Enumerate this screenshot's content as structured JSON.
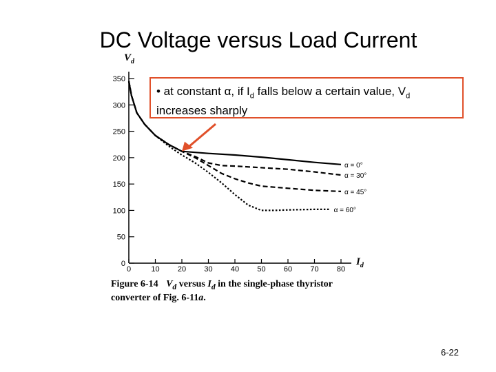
{
  "slide": {
    "title": "DC Voltage versus Load Current",
    "page_number": "6-22"
  },
  "callout": {
    "text_prefix": "• at constant α, if I",
    "sub1": "d",
    "text_middle": " falls below a certain value, V",
    "sub2": "d",
    "text_suffix": " increases sharply",
    "border_color": "#e0502a",
    "arrow_color": "#e0502a"
  },
  "caption": {
    "figure_label": "Figure 6-14",
    "v_symbol": "V",
    "v_sub": "d",
    "versus": " versus ",
    "i_symbol": "I",
    "i_sub": "d",
    "rest": " in the single-phase thyristor converter of Fig. 6-11",
    "fig_ref_letter": "a",
    "end": "."
  },
  "chart_data": {
    "type": "line",
    "ylabel": "V",
    "ylabel_sub": "d",
    "xlabel": "I",
    "xlabel_sub": "d",
    "xlim": [
      0,
      80
    ],
    "ylim": [
      0,
      350
    ],
    "x_ticks": [
      0,
      10,
      20,
      30,
      40,
      50,
      60,
      70,
      80
    ],
    "y_ticks": [
      0,
      50,
      100,
      150,
      200,
      250,
      300,
      350
    ],
    "grid": false,
    "series": [
      {
        "name": "α = 0°",
        "style": "solid",
        "points": [
          [
            0,
            345
          ],
          [
            1,
            318
          ],
          [
            3,
            285
          ],
          [
            6,
            263
          ],
          [
            10,
            242
          ],
          [
            15,
            225
          ],
          [
            20,
            212
          ],
          [
            25,
            210
          ],
          [
            30,
            208
          ],
          [
            40,
            205
          ],
          [
            50,
            201
          ],
          [
            60,
            196
          ],
          [
            70,
            191
          ],
          [
            80,
            187
          ]
        ]
      },
      {
        "name": "α = 30°",
        "style": "dashed",
        "points": [
          [
            0,
            345
          ],
          [
            1,
            318
          ],
          [
            3,
            285
          ],
          [
            6,
            263
          ],
          [
            10,
            242
          ],
          [
            15,
            225
          ],
          [
            20,
            212
          ],
          [
            25,
            202
          ],
          [
            30,
            190
          ],
          [
            35,
            185
          ],
          [
            40,
            184
          ],
          [
            50,
            181
          ],
          [
            60,
            178
          ],
          [
            70,
            173
          ],
          [
            80,
            167
          ]
        ]
      },
      {
        "name": "α = 45°",
        "style": "dashed",
        "points": [
          [
            0,
            345
          ],
          [
            1,
            318
          ],
          [
            3,
            285
          ],
          [
            6,
            263
          ],
          [
            10,
            242
          ],
          [
            15,
            225
          ],
          [
            20,
            212
          ],
          [
            25,
            200
          ],
          [
            30,
            185
          ],
          [
            35,
            170
          ],
          [
            40,
            160
          ],
          [
            45,
            152
          ],
          [
            50,
            146
          ],
          [
            60,
            142
          ],
          [
            70,
            138
          ],
          [
            80,
            136
          ]
        ]
      },
      {
        "name": "α = 60°",
        "style": "dotted",
        "points": [
          [
            0,
            345
          ],
          [
            1,
            318
          ],
          [
            3,
            285
          ],
          [
            6,
            263
          ],
          [
            10,
            242
          ],
          [
            15,
            222
          ],
          [
            20,
            205
          ],
          [
            25,
            190
          ],
          [
            30,
            172
          ],
          [
            35,
            152
          ],
          [
            40,
            130
          ],
          [
            45,
            110
          ],
          [
            50,
            100
          ],
          [
            55,
            100
          ],
          [
            60,
            101
          ],
          [
            70,
            102
          ],
          [
            76,
            102
          ]
        ]
      }
    ],
    "annotations": [
      {
        "text": "α = 0°",
        "series": 0
      },
      {
        "text": "α = 30°",
        "series": 1
      },
      {
        "text": "α = 45°",
        "series": 2
      },
      {
        "text": "α = 60°",
        "series": 3
      }
    ]
  }
}
